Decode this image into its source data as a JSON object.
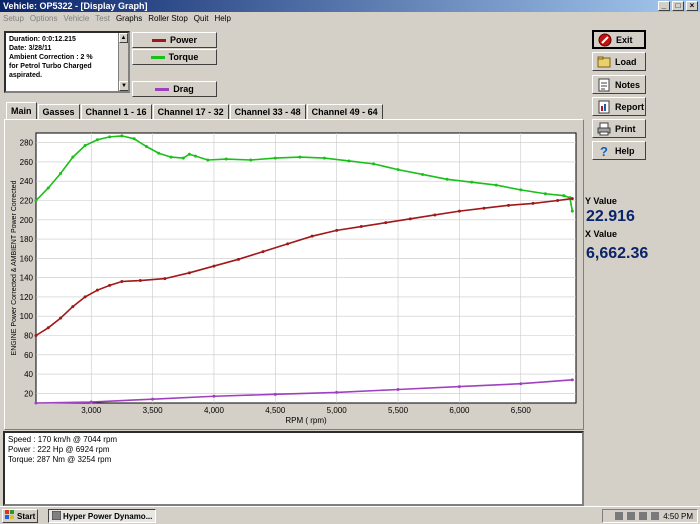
{
  "window": {
    "title": "Vehicle: OP5322 - [Display Graph]",
    "controls": [
      "_",
      "□",
      "×"
    ]
  },
  "menu": [
    {
      "label": "Setup",
      "enabled": false
    },
    {
      "label": "Options",
      "enabled": false
    },
    {
      "label": "Vehicle",
      "enabled": false
    },
    {
      "label": "Test",
      "enabled": false
    },
    {
      "label": "Graphs",
      "enabled": true
    },
    {
      "label": "Roller Stop",
      "enabled": true
    },
    {
      "label": "Quit",
      "enabled": true
    },
    {
      "label": "Help",
      "enabled": true
    }
  ],
  "info": {
    "lines": [
      "Duration: 0:0:12.215",
      "Date:  3/28/11",
      "Ambient Correction : 2 %",
      " for Petrol Turbo Charged",
      "aspirated."
    ]
  },
  "legend": [
    {
      "label": "Power",
      "color": "#a01818"
    },
    {
      "label": "Torque",
      "color": "#18c018"
    },
    {
      "label": "Drag",
      "color": "#a040c0"
    }
  ],
  "tabs": [
    "Main",
    "Gasses",
    "Channel 1 - 16",
    "Channel 17 - 32",
    "Channel 33 - 48",
    "Channel 49 - 64"
  ],
  "side_buttons": [
    {
      "label": "Exit",
      "icon": "exit-icon"
    },
    {
      "label": "Load",
      "icon": "load-icon"
    },
    {
      "label": "Notes",
      "icon": "notes-icon"
    },
    {
      "label": "Report",
      "icon": "report-icon"
    },
    {
      "label": "Print",
      "icon": "print-icon"
    },
    {
      "label": "Help",
      "icon": "help-icon"
    }
  ],
  "readout": {
    "y_label": "Y Value",
    "y_value": "22.916",
    "x_label": "X Value",
    "x_value": "6,662.36"
  },
  "summary": [
    "Speed : 170 km/h @ 7044 rpm",
    "Power : 222 Hp @ 6924 rpm",
    "Torque: 287 Nm @ 3254 rpm"
  ],
  "taskbar": {
    "start": "Start",
    "task": "Hyper Power Dynamo...",
    "clock": "4:50 PM"
  },
  "chart_data": {
    "type": "line",
    "xlabel": "RPM ( rpm)",
    "ylabel": "ENGINE Power Corrected & AMBIENT Power Corrected",
    "xlim": [
      2550,
      6950
    ],
    "ylim": [
      10,
      290
    ],
    "xticks": [
      3000,
      3500,
      4000,
      4500,
      5000,
      5500,
      6000,
      6500
    ],
    "xtick_labels": [
      "3,000",
      "3,500",
      "4,000",
      "4,500",
      "5,000",
      "5,500",
      "6,000",
      "6,500"
    ],
    "yticks": [
      20,
      40,
      60,
      80,
      100,
      120,
      140,
      160,
      180,
      200,
      220,
      240,
      260,
      280
    ],
    "grid": true,
    "series": [
      {
        "name": "Torque",
        "color": "#18c018",
        "x": [
          2550,
          2650,
          2750,
          2850,
          2950,
          3050,
          3150,
          3250,
          3350,
          3450,
          3550,
          3650,
          3750,
          3800,
          3850,
          3950,
          4100,
          4300,
          4500,
          4700,
          4900,
          5100,
          5300,
          5500,
          5700,
          5900,
          6100,
          6300,
          6500,
          6700,
          6850,
          6900,
          6920
        ],
        "y": [
          220,
          233,
          248,
          265,
          277,
          283,
          286,
          287,
          284,
          276,
          269,
          265,
          264,
          268,
          266,
          262,
          263,
          262,
          264,
          265,
          264,
          261,
          258,
          252,
          247,
          242,
          239,
          236,
          231,
          227,
          225,
          223,
          209
        ]
      },
      {
        "name": "Power",
        "color": "#a01818",
        "x": [
          2550,
          2650,
          2750,
          2850,
          2950,
          3050,
          3150,
          3250,
          3400,
          3600,
          3800,
          4000,
          4200,
          4400,
          4600,
          4800,
          5000,
          5200,
          5400,
          5600,
          5800,
          6000,
          6200,
          6400,
          6600,
          6800,
          6920
        ],
        "y": [
          80,
          88,
          98,
          110,
          120,
          127,
          132,
          136,
          137,
          139,
          145,
          152,
          159,
          167,
          175,
          183,
          189,
          193,
          197,
          201,
          205,
          209,
          212,
          215,
          217,
          220,
          222
        ]
      },
      {
        "name": "Drag",
        "color": "#a040c0",
        "x": [
          2550,
          3000,
          3500,
          4000,
          4500,
          5000,
          5500,
          6000,
          6500,
          6920
        ],
        "y": [
          10,
          11,
          14,
          17,
          19,
          21,
          24,
          27,
          30,
          34
        ]
      }
    ]
  }
}
